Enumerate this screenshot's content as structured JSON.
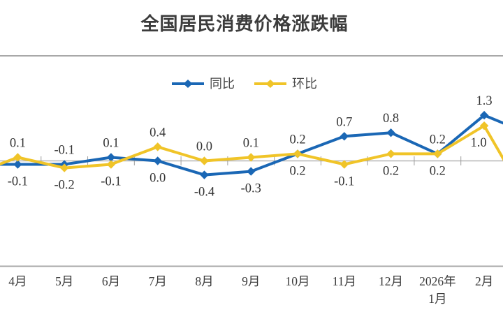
{
  "title": "全国居民消费价格涨跌幅",
  "legend": {
    "position": "top-center",
    "items": [
      {
        "label": "同比"
      },
      {
        "label": "环比"
      }
    ]
  },
  "chart_data": {
    "type": "line",
    "title": "全国居民消费价格涨跌幅",
    "categories": [
      "4月",
      "5月",
      "6月",
      "7月",
      "8月",
      "9月",
      "10月",
      "11月",
      "12月",
      "2026年1月",
      "2月"
    ],
    "series": [
      {
        "name": "同比",
        "color": "#1a67b5",
        "values": [
          -0.1,
          -0.1,
          0.1,
          0.0,
          -0.4,
          -0.3,
          0.2,
          0.7,
          0.8,
          0.2,
          1.3
        ]
      },
      {
        "name": "环比",
        "color": "#f0c428",
        "values": [
          0.1,
          -0.2,
          -0.1,
          0.4,
          0.0,
          0.1,
          0.2,
          -0.1,
          0.2,
          0.2,
          1.0
        ]
      }
    ],
    "ylim": [
      -3,
      3
    ],
    "y_axis_labels_visible": false,
    "grid": false,
    "marker": "diamond",
    "data_labels": {
      "format": "one decimal",
      "placement": "higher series labeled above its point, lower series below; ties show 同比 above and 环比 below"
    },
    "edge_continuation": {
      "note": "lines are cropped at both image edges",
      "left_offscreen_values": {
        "同比": -0.1,
        "环比": -0.4
      },
      "right_offscreen_values": {
        "同比": 0.75,
        "环比": -1.3
      }
    }
  },
  "colors": {
    "label_text": "#333333",
    "axis_text": "#3b3b3b",
    "axis_line": "#b4b4b4",
    "tick": "#9e9e9e",
    "divider": "#a8a8a8",
    "background": "#ffffff"
  }
}
